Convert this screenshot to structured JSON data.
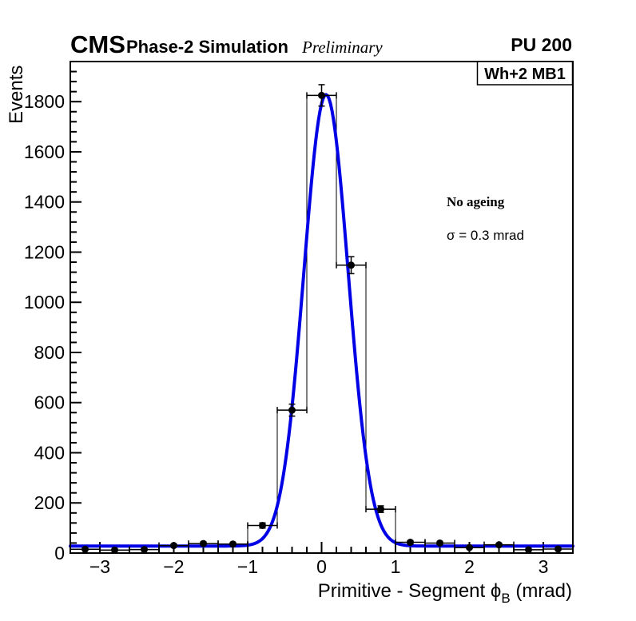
{
  "header": {
    "experiment": "CMS",
    "label": "Phase-2 Simulation",
    "sublabel": "Preliminary",
    "right_label": "PU 200"
  },
  "plot": {
    "corner_label": "Wh+2 MB1",
    "annotation_line1": "No ageing",
    "annotation_line2": "σ = 0.3 mrad"
  },
  "chart_data": {
    "type": "scatter",
    "description": "Histogram data points with error bars and blue Gaussian+constant fit curve",
    "title": "",
    "ylabel": "Events",
    "xlabel_parts": {
      "main": "Primitive - Segment ",
      "symbol": "ϕ",
      "subscript": "B",
      "suffix": " (mrad)"
    },
    "xlim": [
      -3.4,
      3.4
    ],
    "ylim": [
      0,
      1960
    ],
    "grid": false,
    "legend_position": "none",
    "x_major_ticks": [
      -3,
      -2,
      -1,
      0,
      1,
      2,
      3
    ],
    "x_tick_labels": [
      "−3",
      "−2",
      "−1",
      "0",
      "1",
      "2",
      "3"
    ],
    "x_minor_step": 0.2,
    "y_major_ticks": [
      0,
      200,
      400,
      600,
      800,
      1000,
      1200,
      1400,
      1600,
      1800
    ],
    "y_tick_labels": [
      "0",
      "200",
      "400",
      "600",
      "800",
      "1000",
      "1200",
      "1400",
      "1600",
      "1800"
    ],
    "y_minor_step": 40,
    "bin_width": 0.4,
    "series": [
      {
        "name": "data-points",
        "marker": "filled-circle",
        "color": "#000000",
        "xerr_half_width": 0.2,
        "yerr": "sqrt(N)",
        "x": [
          -3.2,
          -2.8,
          -2.4,
          -2.0,
          -1.6,
          -1.2,
          -0.8,
          -0.4,
          0.0,
          0.4,
          0.8,
          1.2,
          1.6,
          2.0,
          2.4,
          2.8,
          3.2
        ],
        "y": [
          15,
          12,
          14,
          30,
          38,
          36,
          110,
          570,
          1825,
          1148,
          175,
          43,
          40,
          22,
          33,
          13,
          16
        ]
      },
      {
        "name": "gaussian-fit",
        "type": "function",
        "color": "#0000e6",
        "fit": {
          "amplitude": 1800,
          "mean": 0.06,
          "sigma": 0.3,
          "baseline": 28
        }
      }
    ]
  },
  "colors": {
    "fit_line": "#0000e6",
    "marker": "#000000",
    "frame": "#000000",
    "background": "#ffffff"
  }
}
